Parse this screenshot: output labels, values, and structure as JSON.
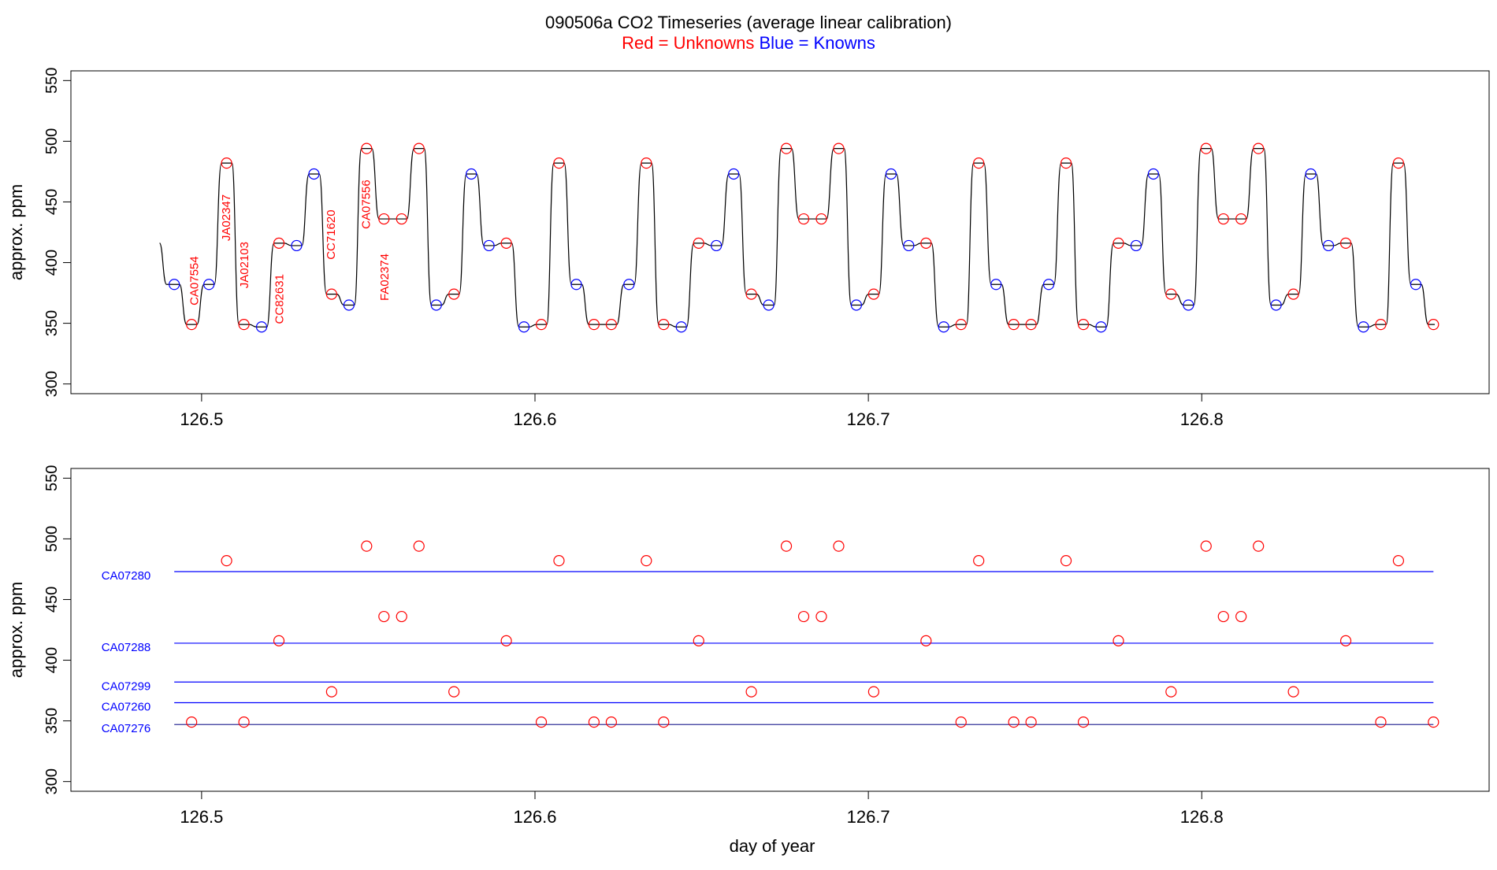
{
  "header": {
    "title": "090506a   CO2 Timeseries (average linear calibration)",
    "legend_red": "Red = Unknowns",
    "legend_blue": "Blue = Knowns"
  },
  "colors": {
    "unknown": "#ff0000",
    "known": "#0000ff",
    "trace": "#000000",
    "axis": "#000000"
  },
  "chart_data": [
    {
      "type": "line",
      "panel": "top",
      "title": "",
      "xlabel": "",
      "ylabel": "approx. ppm",
      "xlim": [
        126.4608,
        126.8862
      ],
      "ylim": [
        292,
        558
      ],
      "x_ticks": [
        126.5,
        126.6,
        126.7,
        126.8
      ],
      "x_tick_labels": [
        "126.5",
        "126.6",
        "126.7",
        "126.8"
      ],
      "y_ticks": [
        300,
        350,
        400,
        450,
        500,
        550
      ],
      "y_tick_labels": [
        "300",
        "350",
        "400",
        "450",
        "500",
        "550"
      ],
      "grid": false,
      "trace_start": 126.4876,
      "trace_start_value": 416,
      "levels": [
        {
          "x": 126.4918,
          "y": 382,
          "group": "known"
        },
        {
          "x": 126.497,
          "y": 349,
          "group": "unknown"
        },
        {
          "x": 126.5022,
          "y": 382,
          "group": "known"
        },
        {
          "x": 126.5075,
          "y": 482,
          "group": "unknown"
        },
        {
          "x": 126.5127,
          "y": 349,
          "group": "unknown"
        },
        {
          "x": 126.518,
          "y": 347,
          "group": "known"
        },
        {
          "x": 126.5232,
          "y": 416,
          "group": "unknown"
        },
        {
          "x": 126.5285,
          "y": 414,
          "group": "known"
        },
        {
          "x": 126.5337,
          "y": 473,
          "group": "known"
        },
        {
          "x": 126.539,
          "y": 374,
          "group": "unknown"
        },
        {
          "x": 126.5442,
          "y": 365,
          "group": "known"
        },
        {
          "x": 126.5495,
          "y": 494,
          "group": "unknown"
        },
        {
          "x": 126.5547,
          "y": 436,
          "group": "unknown"
        },
        {
          "x": 126.56,
          "y": 436,
          "group": "unknown"
        },
        {
          "x": 126.5652,
          "y": 494,
          "group": "unknown"
        },
        {
          "x": 126.5704,
          "y": 365,
          "group": "known"
        },
        {
          "x": 126.5757,
          "y": 374,
          "group": "unknown"
        },
        {
          "x": 126.5809,
          "y": 473,
          "group": "known"
        },
        {
          "x": 126.5862,
          "y": 414,
          "group": "known"
        },
        {
          "x": 126.5914,
          "y": 416,
          "group": "unknown"
        },
        {
          "x": 126.5967,
          "y": 347,
          "group": "known"
        },
        {
          "x": 126.6019,
          "y": 349,
          "group": "unknown"
        },
        {
          "x": 126.6072,
          "y": 482,
          "group": "unknown"
        },
        {
          "x": 126.6124,
          "y": 382,
          "group": "known"
        },
        {
          "x": 126.6177,
          "y": 349,
          "group": "unknown"
        },
        {
          "x": 126.6229,
          "y": 349,
          "group": "unknown"
        },
        {
          "x": 126.6282,
          "y": 382,
          "group": "known"
        },
        {
          "x": 126.6334,
          "y": 482,
          "group": "unknown"
        },
        {
          "x": 126.6386,
          "y": 349,
          "group": "unknown"
        },
        {
          "x": 126.6439,
          "y": 347,
          "group": "known"
        },
        {
          "x": 126.6491,
          "y": 416,
          "group": "unknown"
        },
        {
          "x": 126.6544,
          "y": 414,
          "group": "known"
        },
        {
          "x": 126.6596,
          "y": 473,
          "group": "known"
        },
        {
          "x": 126.6649,
          "y": 374,
          "group": "unknown"
        },
        {
          "x": 126.6701,
          "y": 365,
          "group": "known"
        },
        {
          "x": 126.6754,
          "y": 494,
          "group": "unknown"
        },
        {
          "x": 126.6806,
          "y": 436,
          "group": "unknown"
        },
        {
          "x": 126.6859,
          "y": 436,
          "group": "unknown"
        },
        {
          "x": 126.6911,
          "y": 494,
          "group": "unknown"
        },
        {
          "x": 126.6964,
          "y": 365,
          "group": "known"
        },
        {
          "x": 126.7016,
          "y": 374,
          "group": "unknown"
        },
        {
          "x": 126.7068,
          "y": 473,
          "group": "known"
        },
        {
          "x": 126.7121,
          "y": 414,
          "group": "known"
        },
        {
          "x": 126.7173,
          "y": 416,
          "group": "unknown"
        },
        {
          "x": 126.7226,
          "y": 347,
          "group": "known"
        },
        {
          "x": 126.7278,
          "y": 349,
          "group": "unknown"
        },
        {
          "x": 126.7331,
          "y": 482,
          "group": "unknown"
        },
        {
          "x": 126.7383,
          "y": 382,
          "group": "known"
        },
        {
          "x": 126.7436,
          "y": 349,
          "group": "unknown"
        },
        {
          "x": 126.7488,
          "y": 349,
          "group": "unknown"
        },
        {
          "x": 126.7541,
          "y": 382,
          "group": "known"
        },
        {
          "x": 126.7593,
          "y": 482,
          "group": "unknown"
        },
        {
          "x": 126.7645,
          "y": 349,
          "group": "unknown"
        },
        {
          "x": 126.7698,
          "y": 347,
          "group": "known"
        },
        {
          "x": 126.775,
          "y": 416,
          "group": "unknown"
        },
        {
          "x": 126.7803,
          "y": 414,
          "group": "known"
        },
        {
          "x": 126.7855,
          "y": 473,
          "group": "known"
        },
        {
          "x": 126.7908,
          "y": 374,
          "group": "unknown"
        },
        {
          "x": 126.796,
          "y": 365,
          "group": "known"
        },
        {
          "x": 126.8013,
          "y": 494,
          "group": "unknown"
        },
        {
          "x": 126.8065,
          "y": 436,
          "group": "unknown"
        },
        {
          "x": 126.8118,
          "y": 436,
          "group": "unknown"
        },
        {
          "x": 126.817,
          "y": 494,
          "group": "unknown"
        },
        {
          "x": 126.8223,
          "y": 365,
          "group": "known"
        },
        {
          "x": 126.8275,
          "y": 374,
          "group": "unknown"
        },
        {
          "x": 126.8327,
          "y": 473,
          "group": "known"
        },
        {
          "x": 126.838,
          "y": 414,
          "group": "known"
        },
        {
          "x": 126.8432,
          "y": 416,
          "group": "unknown"
        },
        {
          "x": 126.8485,
          "y": 347,
          "group": "known"
        },
        {
          "x": 126.8537,
          "y": 349,
          "group": "unknown"
        },
        {
          "x": 126.859,
          "y": 482,
          "group": "unknown"
        },
        {
          "x": 126.8642,
          "y": 382,
          "group": "known"
        },
        {
          "x": 126.8695,
          "y": 349,
          "group": "unknown"
        }
      ],
      "annotations": [
        {
          "text": "CA07554",
          "x": 126.499,
          "y": 385
        },
        {
          "text": "JA02347",
          "x": 126.5085,
          "y": 437
        },
        {
          "text": "JA02103",
          "x": 126.514,
          "y": 398
        },
        {
          "text": "CC82631",
          "x": 126.5245,
          "y": 370
        },
        {
          "text": "CC71620",
          "x": 126.54,
          "y": 423
        },
        {
          "text": "CA07556",
          "x": 126.5505,
          "y": 448
        },
        {
          "text": "FA02374",
          "x": 126.556,
          "y": 388
        }
      ]
    },
    {
      "type": "scatter",
      "panel": "bottom",
      "title": "",
      "xlabel": "day of year",
      "ylabel": "approx. ppm",
      "xlim": [
        126.4608,
        126.8862
      ],
      "ylim": [
        292,
        558
      ],
      "x_ticks": [
        126.5,
        126.6,
        126.7,
        126.8
      ],
      "x_tick_labels": [
        "126.5",
        "126.6",
        "126.7",
        "126.8"
      ],
      "y_ticks": [
        300,
        350,
        400,
        450,
        500,
        550
      ],
      "y_tick_labels": [
        "300",
        "350",
        "400",
        "450",
        "500",
        "550"
      ],
      "grid": false,
      "reference_lines": [
        {
          "name": "CA07280",
          "y": 473
        },
        {
          "name": "CA07288",
          "y": 414
        },
        {
          "name": "CA07299",
          "y": 382
        },
        {
          "name": "CA07260",
          "y": 365
        },
        {
          "name": "CA07276",
          "y": 347
        }
      ],
      "reference_x_range": [
        126.4918,
        126.8695
      ]
    }
  ]
}
